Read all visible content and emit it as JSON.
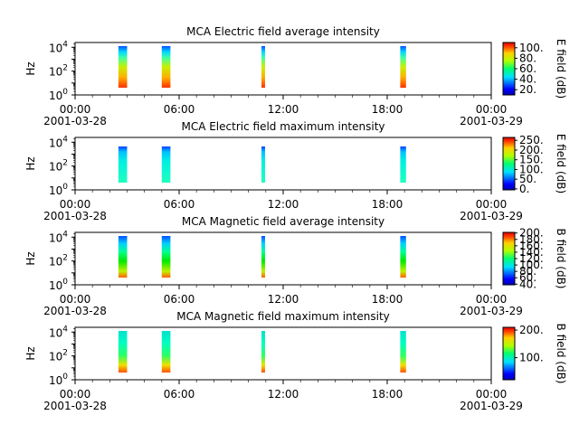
{
  "chart_data": [
    {
      "type": "heatmap",
      "title": "MCA  Electric field average intensity",
      "ylabel": "Hz",
      "y_scale": "log",
      "y_ticks": [
        {
          "base": "10",
          "exp": "0"
        },
        {
          "base": "10",
          "exp": "2"
        },
        {
          "base": "10",
          "exp": "4"
        }
      ],
      "x_range": [
        "2001-03-28 00:00",
        "2001-03-29 00:00"
      ],
      "x_ticks": [
        "00:00",
        "06:00",
        "12:00",
        "18:00",
        "00:00"
      ],
      "x_dates": [
        "2001-03-28",
        "2001-03-29"
      ],
      "colorbar": {
        "label": "E field (dB)",
        "ticks": [
          "20.",
          "40.",
          "60.",
          "80.",
          "100."
        ],
        "min": 10,
        "max": 110
      },
      "segments": [
        [
          "02:30",
          "03:00"
        ],
        [
          "05:00",
          "05:30"
        ],
        [
          "10:45",
          "10:55"
        ],
        [
          "18:45",
          "19:05"
        ]
      ]
    },
    {
      "type": "heatmap",
      "title": "MCA  Electric field maximum intensity",
      "ylabel": "Hz",
      "y_scale": "log",
      "y_ticks": [
        {
          "base": "10",
          "exp": "0"
        },
        {
          "base": "10",
          "exp": "2"
        },
        {
          "base": "10",
          "exp": "4"
        }
      ],
      "x_range": [
        "2001-03-28 00:00",
        "2001-03-29 00:00"
      ],
      "x_ticks": [
        "00:00",
        "06:00",
        "12:00",
        "18:00",
        "00:00"
      ],
      "x_dates": [
        "2001-03-28",
        "2001-03-29"
      ],
      "colorbar": {
        "label": "E field (dB)",
        "ticks": [
          "0.",
          "50.",
          "100.",
          "150.",
          "200.",
          "250."
        ],
        "min": -5,
        "max": 265
      },
      "segments": [
        [
          "02:30",
          "03:00"
        ],
        [
          "05:00",
          "05:30"
        ],
        [
          "10:45",
          "10:55"
        ],
        [
          "18:45",
          "19:05"
        ]
      ]
    },
    {
      "type": "heatmap",
      "title": "MCA  Magnetic field average intensity",
      "ylabel": "Hz",
      "y_scale": "log",
      "y_ticks": [
        {
          "base": "10",
          "exp": "0"
        },
        {
          "base": "10",
          "exp": "2"
        },
        {
          "base": "10",
          "exp": "4"
        }
      ],
      "x_range": [
        "2001-03-28 00:00",
        "2001-03-29 00:00"
      ],
      "x_ticks": [
        "00:00",
        "06:00",
        "12:00",
        "18:00",
        "00:00"
      ],
      "x_dates": [
        "2001-03-28",
        "2001-03-29"
      ],
      "colorbar": {
        "label": "B field (dB)",
        "ticks": [
          "40.",
          "60.",
          "80.",
          "100.",
          "120.",
          "140.",
          "160.",
          "180.",
          "200."
        ],
        "min": 38,
        "max": 202
      },
      "segments": [
        [
          "02:30",
          "03:00"
        ],
        [
          "05:00",
          "05:30"
        ],
        [
          "10:45",
          "10:55"
        ],
        [
          "18:45",
          "19:05"
        ]
      ]
    },
    {
      "type": "heatmap",
      "title": "MCA  Magnetic field maximum intensity",
      "ylabel": "Hz",
      "y_scale": "log",
      "y_ticks": [
        {
          "base": "10",
          "exp": "0"
        },
        {
          "base": "10",
          "exp": "2"
        },
        {
          "base": "10",
          "exp": "4"
        }
      ],
      "x_range": [
        "2001-03-28 00:00",
        "2001-03-29 00:00"
      ],
      "x_ticks": [
        "00:00",
        "06:00",
        "12:00",
        "18:00",
        "00:00"
      ],
      "x_dates": [
        "2001-03-28",
        "2001-03-29"
      ],
      "colorbar": {
        "label": "B field (dB)",
        "ticks": [
          "100.",
          "200."
        ],
        "min": 20,
        "max": 210
      },
      "segments": [
        [
          "02:30",
          "03:00"
        ],
        [
          "05:00",
          "05:30"
        ],
        [
          "10:45",
          "10:55"
        ],
        [
          "18:45",
          "19:05"
        ]
      ]
    }
  ]
}
